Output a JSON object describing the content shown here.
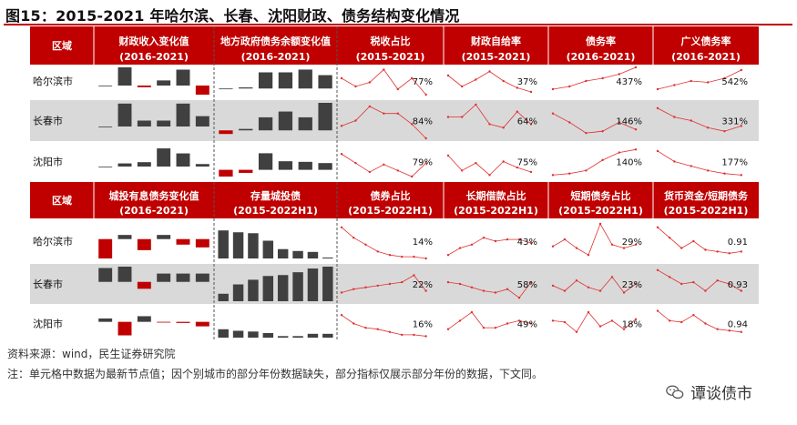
{
  "title": "图15：2015-2021 年哈尔滨、长春、沈阳财政、债务结构变化情况",
  "source": "资料来源：wind，民生证券研究院",
  "note": "注：单元格中数据为最新节点值；因个别城市的部分年份数据缺失，部分指标仅展示部分年份的数据，下文同。",
  "watermark": "谭谈债市",
  "colors": {
    "header_red": "#c00000",
    "bar_dark": "#404040",
    "neg_red": "#c00000",
    "line_red": "#e03030",
    "row_gray": "#d9d9d9"
  },
  "chart_data": [
    {
      "panel": "top",
      "type": "table",
      "row_header": "区域",
      "cities": [
        "哈尔滨市",
        "长春市",
        "沈阳市"
      ],
      "columns": [
        {
          "kind": "bar",
          "title": "财政收入变化值",
          "period": "(2016-2021)",
          "values": [
            [
              0,
              3.2,
              -0.3,
              0.9,
              2.8,
              -1.6
            ],
            [
              0,
              3.1,
              0.8,
              0.8,
              3.1,
              1.4
            ],
            [
              0,
              0.5,
              0.7,
              2.9,
              2.1,
              0.4
            ]
          ]
        },
        {
          "kind": "bar",
          "title": "地方政府债务余额变化值",
          "period": "(2016-2021)",
          "values": [
            [
              0,
              0.2,
              2.9,
              2.9,
              3.4,
              2.4
            ],
            [
              -0.5,
              0.2,
              1.8,
              2.6,
              1.8,
              3.8
            ],
            [
              -1.1,
              -0.5,
              2.7,
              1.4,
              1.3,
              1.1
            ]
          ]
        },
        {
          "kind": "line",
          "title": "税收占比",
          "period": "(2015-2021)",
          "label": "77%",
          "points": [
            [
              0.6,
              0.3,
              0.45,
              0.92,
              0.2,
              0.6,
              0.0
            ],
            [
              0.35,
              0.5,
              0.9,
              0.7,
              0.7,
              0.4,
              0.0
            ],
            [
              0.75,
              0.45,
              0.15,
              0.4,
              0.2,
              0.0,
              0.45
            ]
          ],
          "labels": [
            "77%",
            "84%",
            "79%"
          ]
        },
        {
          "kind": "line",
          "title": "财政自给率",
          "period": "(2015-2021)",
          "points": [
            [
              0.7,
              0.3,
              0.55,
              0.85,
              0.5,
              0.25,
              0.1
            ],
            [
              0.6,
              0.6,
              0.95,
              0.4,
              0.3,
              0.75,
              0.4
            ],
            [
              0.7,
              0.2,
              0.45,
              0.05,
              0.5,
              0.3,
              0.15
            ]
          ],
          "labels": [
            "37%",
            "64%",
            "75%"
          ]
        },
        {
          "kind": "line",
          "title": "债务率",
          "period": "(2016-2021)",
          "points": [
            [
              0.2,
              0.3,
              0.5,
              0.6,
              0.75,
              1.0
            ],
            [
              0.7,
              0.45,
              0.15,
              0.2,
              0.45,
              0.25
            ],
            [
              0.05,
              0.1,
              0.2,
              0.55,
              0.8,
              0.9
            ]
          ],
          "labels": [
            "437%",
            "146%",
            "140%"
          ]
        },
        {
          "kind": "line",
          "title": "广义债务率",
          "period": "(2016-2021)",
          "points": [
            [
              0.2,
              0.35,
              0.5,
              0.45,
              0.6,
              0.9
            ],
            [
              0.85,
              0.6,
              0.5,
              0.3,
              0.2,
              0.35
            ],
            [
              0.85,
              0.5,
              0.35,
              0.2,
              0.1,
              0.05
            ]
          ],
          "labels": [
            "542%",
            "331%",
            "177%"
          ]
        }
      ]
    },
    {
      "panel": "bottom",
      "type": "table",
      "row_header": "区域",
      "cities": [
        "哈尔滨市",
        "长春市",
        "沈阳市"
      ],
      "columns": [
        {
          "kind": "bar",
          "title": "城投有息债务变化值",
          "period": "(2016-2021)",
          "values": [
            [
              -1.4,
              0.3,
              -0.8,
              0.3,
              -0.4,
              -0.6
            ],
            [
              1.0,
              1.1,
              -0.5,
              0.6,
              0.6,
              0.6
            ],
            [
              0.3,
              -1.2,
              0.5,
              -0.05,
              -0.1,
              -0.4
            ]
          ]
        },
        {
          "kind": "bar",
          "title": "存量城投债",
          "period": "(2015-2022H1)",
          "values": [
            [
              3.0,
              2.8,
              2.7,
              1.9,
              1.0,
              0.8,
              0.7,
              0.1
            ],
            [
              0.8,
              1.8,
              2.3,
              2.7,
              2.8,
              3.1,
              3.5,
              3.7
            ],
            [
              1.1,
              0.9,
              0.8,
              0.6,
              0.2,
              0.2,
              0.5,
              0.5
            ]
          ]
        },
        {
          "kind": "line",
          "title": "债券占比",
          "period": "(2015-2022H1)",
          "points": [
            [
              0.9,
              0.6,
              0.4,
              0.2,
              0.1,
              0.05,
              0.05,
              0.0
            ],
            [
              0.25,
              0.35,
              0.4,
              0.45,
              0.5,
              0.55,
              0.75,
              0.3
            ],
            [
              0.8,
              0.5,
              0.35,
              0.3,
              0.2,
              0.1,
              0.1,
              0.05
            ]
          ],
          "labels": [
            "14%",
            "22%",
            "16%"
          ]
        },
        {
          "kind": "line",
          "title": "长期借款占比",
          "period": "(2015-2022H1)",
          "points": [
            [
              0.1,
              0.3,
              0.4,
              0.6,
              0.5,
              0.55,
              0.55,
              0.45
            ],
            [
              0.55,
              0.5,
              0.4,
              0.3,
              0.25,
              0.35,
              0.1,
              0.55
            ],
            [
              0.3,
              0.6,
              0.9,
              0.35,
              0.35,
              0.5,
              0.6,
              0.5
            ]
          ],
          "labels": [
            "43%",
            "58%",
            "49%"
          ]
        },
        {
          "kind": "line",
          "title": "短期债务占比",
          "period": "(2015-2022H1)",
          "points": [
            [
              0.35,
              0.55,
              0.3,
              0.1,
              1.0,
              0.4,
              0.3,
              0.4
            ],
            [
              0.45,
              0.3,
              0.6,
              0.4,
              0.3,
              0.7,
              0.25,
              0.5
            ],
            [
              0.6,
              0.55,
              0.2,
              0.9,
              0.4,
              0.6,
              0.3,
              0.65
            ]
          ],
          "labels": [
            "29%",
            "23%",
            "18%"
          ]
        },
        {
          "kind": "line",
          "title": "货币资金/短期债务",
          "period": "(2015-2022H1)",
          "points": [
            [
              0.9,
              0.6,
              0.3,
              0.5,
              0.25,
              0.2,
              0.15,
              0.2
            ],
            [
              0.9,
              0.7,
              0.5,
              0.55,
              0.3,
              0.6,
              0.5,
              0.3
            ],
            [
              0.95,
              0.6,
              0.55,
              0.8,
              0.5,
              0.3,
              0.25,
              0.2
            ]
          ],
          "labels": [
            "0.91",
            "0.93",
            "0.94"
          ]
        }
      ]
    }
  ]
}
